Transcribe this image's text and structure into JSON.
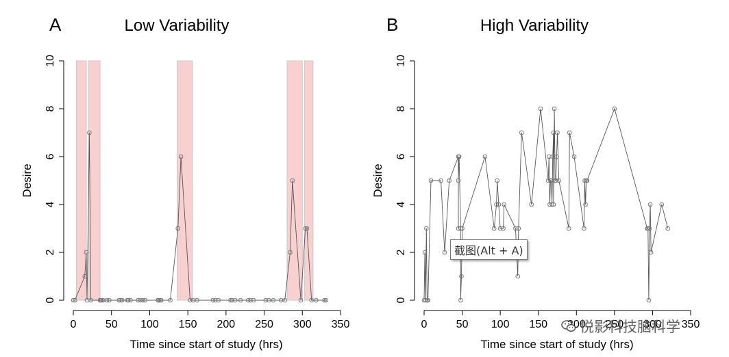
{
  "chart_data": [
    {
      "panel_label": "A",
      "title": "Low Variability",
      "type": "line",
      "xlabel": "Time since start of study (hrs)",
      "ylabel": "Desire",
      "xlim": [
        0,
        350
      ],
      "ylim": [
        0,
        10
      ],
      "xticks": [
        0,
        50,
        100,
        150,
        200,
        250,
        300,
        350
      ],
      "yticks": [
        0,
        2,
        4,
        6,
        8,
        10
      ],
      "highlight_intervals": [
        [
          4,
          17
        ],
        [
          20,
          35
        ],
        [
          136,
          156
        ],
        [
          280,
          300
        ],
        [
          303,
          314
        ]
      ],
      "points": [
        [
          0,
          0
        ],
        [
          2,
          0
        ],
        [
          15,
          1
        ],
        [
          17,
          2
        ],
        [
          18,
          0
        ],
        [
          21,
          7
        ],
        [
          23,
          0
        ],
        [
          35,
          0
        ],
        [
          36,
          0
        ],
        [
          37,
          0
        ],
        [
          39,
          0
        ],
        [
          44,
          0
        ],
        [
          47,
          0
        ],
        [
          60,
          0
        ],
        [
          62,
          0
        ],
        [
          64,
          0
        ],
        [
          71,
          0
        ],
        [
          72,
          0
        ],
        [
          75,
          0
        ],
        [
          85,
          0
        ],
        [
          88,
          0
        ],
        [
          91,
          0
        ],
        [
          94,
          0
        ],
        [
          111,
          0
        ],
        [
          112,
          0
        ],
        [
          114,
          0
        ],
        [
          115,
          0
        ],
        [
          127,
          0
        ],
        [
          137,
          3
        ],
        [
          141,
          6
        ],
        [
          153,
          0
        ],
        [
          157,
          0
        ],
        [
          162,
          0
        ],
        [
          183,
          0
        ],
        [
          186,
          0
        ],
        [
          190,
          0
        ],
        [
          206,
          0
        ],
        [
          208,
          0
        ],
        [
          212,
          0
        ],
        [
          219,
          0
        ],
        [
          229,
          0
        ],
        [
          232,
          0
        ],
        [
          236,
          0
        ],
        [
          252,
          0
        ],
        [
          256,
          0
        ],
        [
          262,
          0
        ],
        [
          272,
          0
        ],
        [
          277,
          0
        ],
        [
          284,
          2
        ],
        [
          287,
          5
        ],
        [
          298,
          0
        ],
        [
          304,
          3
        ],
        [
          306,
          3
        ],
        [
          312,
          0
        ],
        [
          318,
          0
        ],
        [
          329,
          0
        ],
        [
          331,
          0
        ]
      ]
    },
    {
      "panel_label": "B",
      "title": "High Variability",
      "type": "line",
      "xlabel": "Time since start of study (hrs)",
      "ylabel": "Desire",
      "xlim": [
        0,
        350
      ],
      "ylim": [
        0,
        10
      ],
      "xticks": [
        0,
        50,
        100,
        150,
        200,
        250,
        300,
        350
      ],
      "yticks": [
        0,
        2,
        4,
        6,
        8,
        10
      ],
      "highlight_intervals": [],
      "points": [
        [
          0,
          0
        ],
        [
          1,
          2
        ],
        [
          2,
          0
        ],
        [
          3,
          3
        ],
        [
          4,
          0
        ],
        [
          5,
          0
        ],
        [
          9,
          5
        ],
        [
          22,
          5
        ],
        [
          27,
          2
        ],
        [
          33,
          5
        ],
        [
          45,
          6
        ],
        [
          45,
          3
        ],
        [
          45,
          5
        ],
        [
          46,
          6
        ],
        [
          48,
          3
        ],
        [
          48,
          0
        ],
        [
          49,
          1
        ],
        [
          50,
          3
        ],
        [
          80,
          6
        ],
        [
          92,
          3
        ],
        [
          95,
          4
        ],
        [
          96,
          5
        ],
        [
          98,
          4
        ],
        [
          100,
          3
        ],
        [
          104,
          3
        ],
        [
          105,
          4
        ],
        [
          120,
          3
        ],
        [
          123,
          1
        ],
        [
          124,
          3
        ],
        [
          128,
          7
        ],
        [
          141,
          4
        ],
        [
          153,
          8
        ],
        [
          163,
          5
        ],
        [
          164,
          6
        ],
        [
          165,
          4
        ],
        [
          166,
          5
        ],
        [
          167,
          5
        ],
        [
          168,
          4
        ],
        [
          169,
          6
        ],
        [
          170,
          7
        ],
        [
          170,
          4
        ],
        [
          171,
          8
        ],
        [
          172,
          5
        ],
        [
          173,
          5
        ],
        [
          174,
          6
        ],
        [
          175,
          7
        ],
        [
          177,
          5
        ],
        [
          190,
          3
        ],
        [
          191,
          7
        ],
        [
          197,
          6
        ],
        [
          210,
          3
        ],
        [
          211,
          5
        ],
        [
          212,
          4
        ],
        [
          213,
          5
        ],
        [
          214,
          5
        ],
        [
          250,
          8
        ],
        [
          293,
          3
        ],
        [
          294,
          3
        ],
        [
          295,
          0
        ],
        [
          296,
          3
        ],
        [
          297,
          4
        ],
        [
          298,
          2
        ],
        [
          312,
          4
        ],
        [
          320,
          3
        ]
      ]
    }
  ],
  "tooltip": {
    "text": "截图(Alt + A)"
  },
  "watermark": {
    "text": "悦影科技脑科学",
    "icon": "wechat-icon"
  },
  "colors": {
    "highlight": "#f8d0d0",
    "line": "#555555",
    "marker": "#777777",
    "axis": "#000000"
  }
}
